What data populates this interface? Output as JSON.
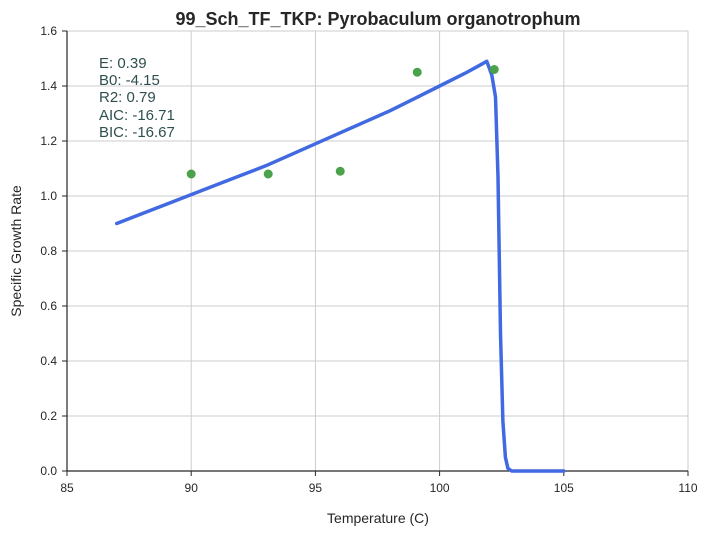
{
  "chart_data": {
    "type": "line",
    "title": "99_Sch_TF_TKP: Pyrobaculum organotrophum",
    "xlabel": "Temperature (C)",
    "ylabel": "Specific Growth Rate",
    "xlim": [
      85,
      110
    ],
    "ylim": [
      0.0,
      1.6
    ],
    "xticks": [
      "85",
      "90",
      "95",
      "100",
      "105",
      "110"
    ],
    "yticks": [
      "0.0",
      "0.2",
      "0.4",
      "0.6",
      "0.8",
      "1.0",
      "1.2",
      "1.4",
      "1.6"
    ],
    "grid": true,
    "annotations": [
      "E:  0.39",
      "B0:  -4.15",
      "R2:  0.79",
      "AIC: -16.71",
      "BIC: -16.67"
    ],
    "colors": {
      "line": "#4169e1",
      "points": "#4aa24a",
      "grid": "#cccccc",
      "axis": "#262626",
      "annotation": "#2f4f4f"
    },
    "series": [
      {
        "type": "line",
        "x": [
          87.0,
          88.0,
          89.0,
          90.0,
          91.0,
          92.0,
          93.0,
          94.0,
          95.0,
          96.0,
          97.0,
          98.0,
          99.0,
          100.0,
          101.0,
          101.5,
          101.9,
          102.1,
          102.25,
          102.35,
          102.45,
          102.55,
          102.65,
          102.75,
          102.9,
          103.2,
          104.0,
          105.0
        ],
        "y": [
          0.9,
          0.935,
          0.97,
          1.005,
          1.04,
          1.075,
          1.11,
          1.15,
          1.19,
          1.23,
          1.27,
          1.31,
          1.355,
          1.4,
          1.445,
          1.47,
          1.49,
          1.44,
          1.36,
          1.07,
          0.5,
          0.18,
          0.05,
          0.01,
          0.0,
          0.0,
          0.0,
          0.0
        ]
      },
      {
        "type": "scatter",
        "x": [
          90.0,
          93.1,
          96.0,
          99.1,
          102.2
        ],
        "y": [
          1.08,
          1.08,
          1.09,
          1.45,
          1.46
        ]
      }
    ]
  }
}
